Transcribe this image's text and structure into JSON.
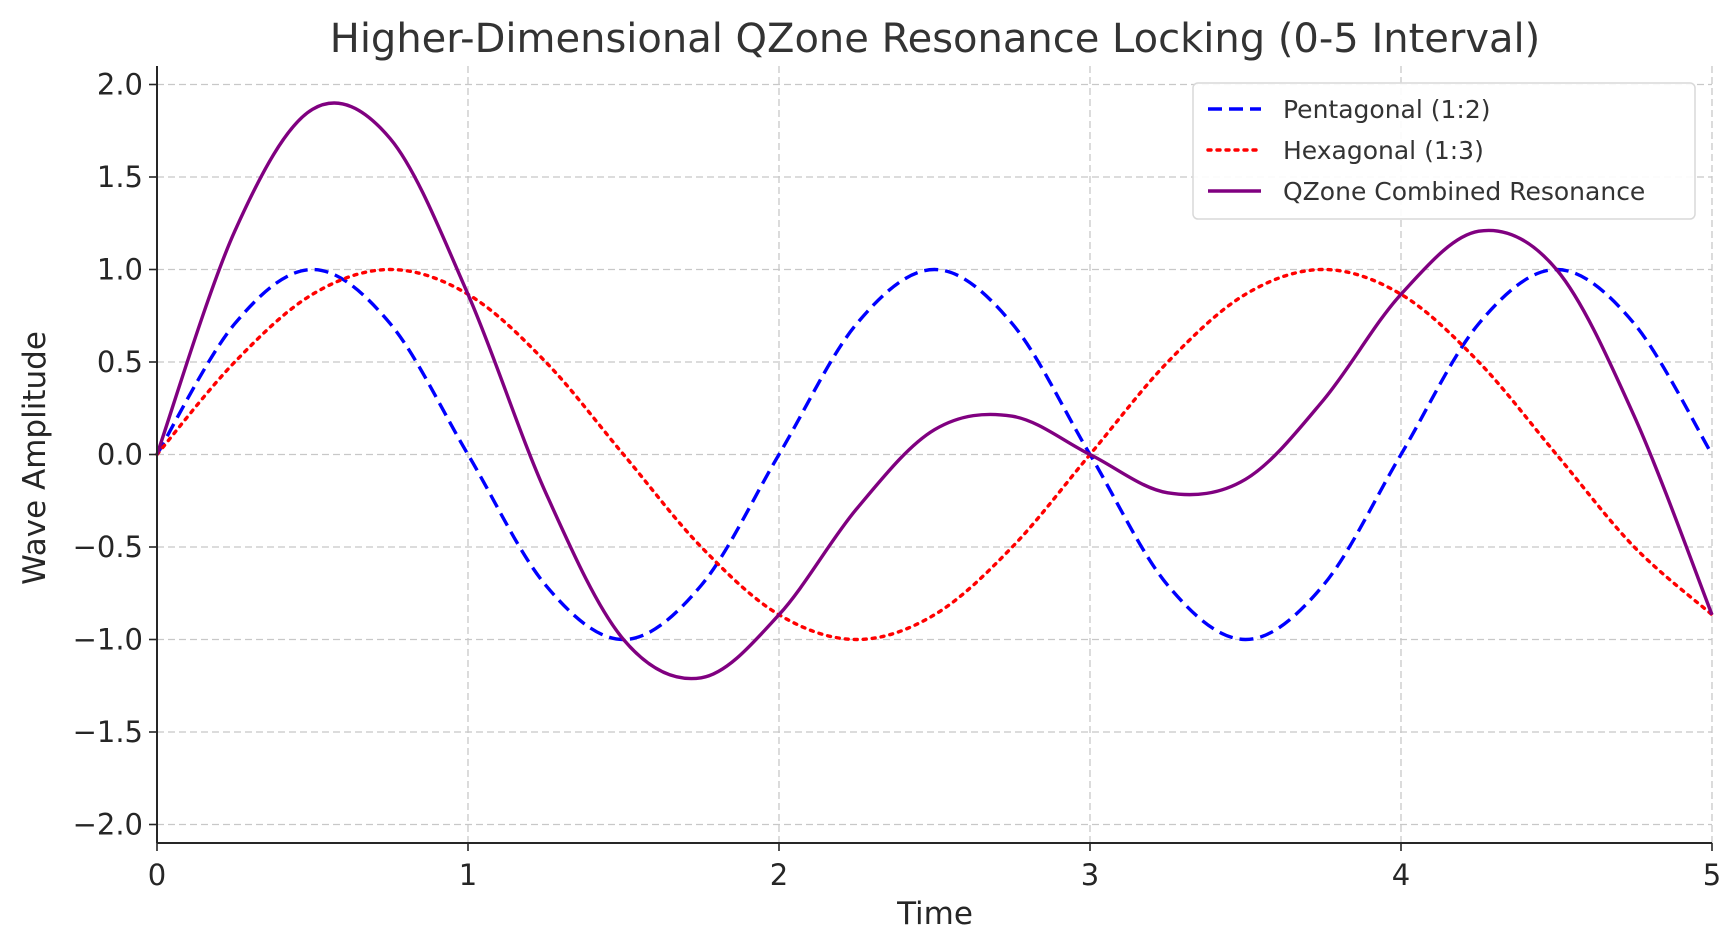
{
  "chart_data": {
    "type": "line",
    "title": "Higher-Dimensional QZone Resonance Locking (0-5 Interval)",
    "xlabel": "Time",
    "ylabel": "Wave Amplitude",
    "xlim": [
      0,
      5
    ],
    "ylim": [
      -2.1,
      2.1
    ],
    "xticks": [
      0,
      1,
      2,
      3,
      4,
      5
    ],
    "xtick_labels": [
      "0",
      "1",
      "2",
      "3",
      "4",
      "5"
    ],
    "yticks": [
      2.0,
      1.5,
      1.0,
      0.5,
      0.0,
      -0.5,
      -1.0,
      -1.5,
      -2.0
    ],
    "ytick_labels": [
      "2.0",
      "1.5",
      "1.0",
      "0.5",
      "0.0",
      "−0.5",
      "−1.0",
      "−1.5",
      "−2.0"
    ],
    "grid": true,
    "legend_position": "top-right",
    "x": [
      0,
      0.25,
      0.5,
      0.75,
      1.0,
      1.25,
      1.5,
      1.75,
      2.0,
      2.25,
      2.5,
      2.75,
      3.0,
      3.25,
      3.5,
      3.75,
      4.0,
      4.25,
      4.5,
      4.75,
      5.0
    ],
    "series": [
      {
        "name": "Pentagonal (1:2)",
        "color": "#0000ff",
        "style": "dashed",
        "values": [
          0.0,
          0.707,
          1.0,
          0.707,
          0.0,
          -0.707,
          -1.0,
          -0.707,
          0.0,
          0.707,
          1.0,
          0.707,
          0.0,
          -0.707,
          -1.0,
          -0.707,
          0.0,
          0.707,
          1.0,
          0.707,
          0.0
        ]
      },
      {
        "name": "Hexagonal (1:3)",
        "color": "#ff0000",
        "style": "dotted",
        "values": [
          0.0,
          0.5,
          0.866,
          1.0,
          0.866,
          0.5,
          0.0,
          -0.5,
          -0.866,
          -1.0,
          -0.866,
          -0.5,
          0.0,
          0.5,
          0.866,
          1.0,
          0.866,
          0.5,
          0.0,
          -0.5,
          -0.866
        ]
      },
      {
        "name": "QZone Combined Resonance",
        "color": "#800080",
        "style": "solid",
        "values": [
          0.0,
          1.207,
          1.866,
          1.707,
          0.866,
          -0.207,
          -1.0,
          -1.207,
          -0.866,
          -0.293,
          0.134,
          0.207,
          0.0,
          -0.207,
          -0.134,
          0.293,
          0.866,
          1.207,
          1.0,
          0.207,
          -0.866
        ]
      }
    ]
  }
}
